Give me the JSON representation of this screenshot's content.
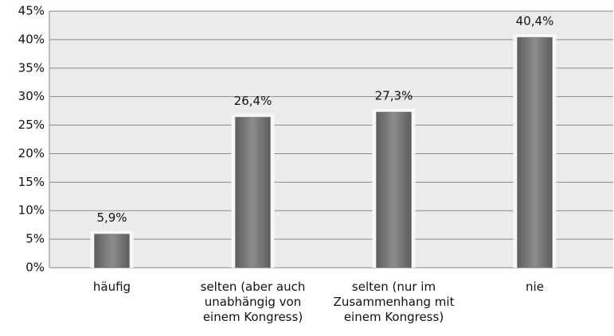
{
  "chart_data": {
    "type": "bar",
    "categories": [
      "häufig",
      "selten (aber auch unabhängig von einem Kongress)",
      "selten (nur im Zusammenhang mit einem Kongress)",
      "nie"
    ],
    "values": [
      5.9,
      26.4,
      27.3,
      40.4
    ],
    "value_labels": [
      "5,9%",
      "26,4%",
      "27,3%",
      "40,4%"
    ],
    "color": "#707070",
    "ylim": [
      0,
      45
    ],
    "yticks": [
      {
        "value": 0,
        "label": "0%"
      },
      {
        "value": 5,
        "label": "5%"
      },
      {
        "value": 10,
        "label": "10%"
      },
      {
        "value": 15,
        "label": "15%"
      },
      {
        "value": 20,
        "label": "20%"
      },
      {
        "value": 25,
        "label": "25%"
      },
      {
        "value": 30,
        "label": "30%"
      },
      {
        "value": 35,
        "label": "35%"
      },
      {
        "value": 40,
        "label": "40%"
      },
      {
        "value": 45,
        "label": "45%"
      }
    ],
    "grid": true
  }
}
